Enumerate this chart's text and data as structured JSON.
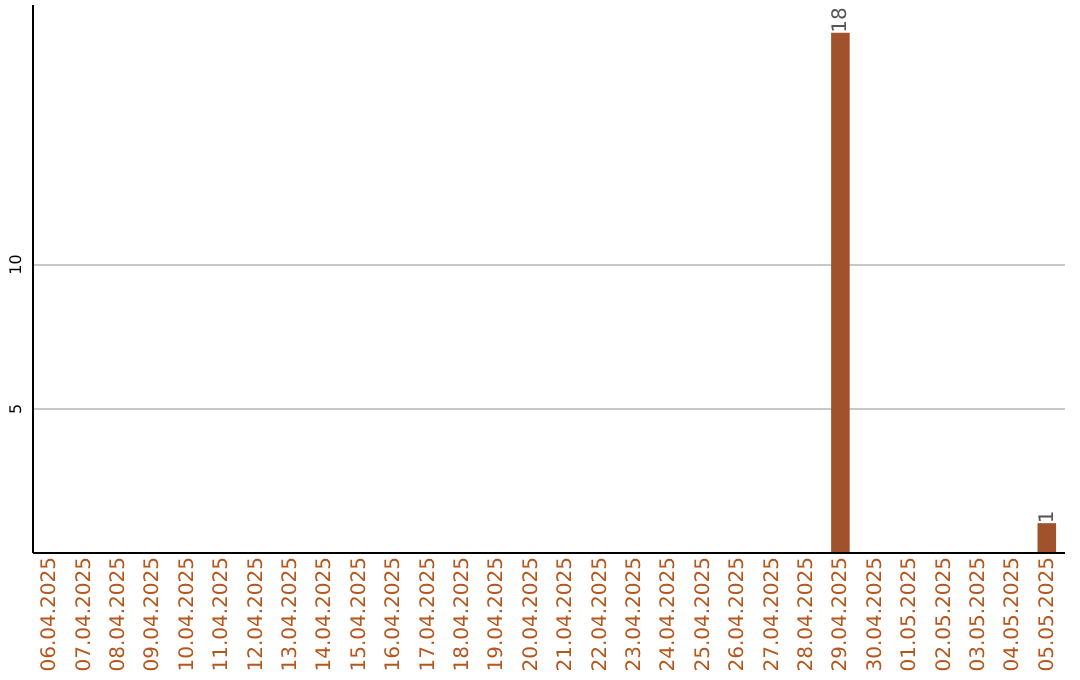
{
  "chart_data": {
    "type": "bar",
    "categories": [
      "06.04.2025",
      "07.04.2025",
      "08.04.2025",
      "09.04.2025",
      "10.04.2025",
      "11.04.2025",
      "12.04.2025",
      "13.04.2025",
      "14.04.2025",
      "15.04.2025",
      "16.04.2025",
      "17.04.2025",
      "18.04.2025",
      "19.04.2025",
      "20.04.2025",
      "21.04.2025",
      "22.04.2025",
      "23.04.2025",
      "24.04.2025",
      "25.04.2025",
      "26.04.2025",
      "27.04.2025",
      "28.04.2025",
      "29.04.2025",
      "30.04.2025",
      "01.05.2025",
      "02.05.2025",
      "03.05.2025",
      "04.05.2025",
      "05.05.2025"
    ],
    "values": [
      0,
      0,
      0,
      0,
      0,
      0,
      0,
      0,
      0,
      0,
      0,
      0,
      0,
      0,
      0,
      0,
      0,
      0,
      0,
      0,
      0,
      0,
      0,
      18,
      0,
      0,
      0,
      0,
      0,
      1
    ],
    "value_labels": [
      null,
      null,
      null,
      null,
      null,
      null,
      null,
      null,
      null,
      null,
      null,
      null,
      null,
      null,
      null,
      null,
      null,
      null,
      null,
      null,
      null,
      null,
      null,
      "18",
      null,
      null,
      null,
      null,
      null,
      "1"
    ],
    "color": "#a0522d",
    "ylim": [
      0,
      19
    ],
    "yticks": [
      5,
      10
    ],
    "grid": "y"
  }
}
